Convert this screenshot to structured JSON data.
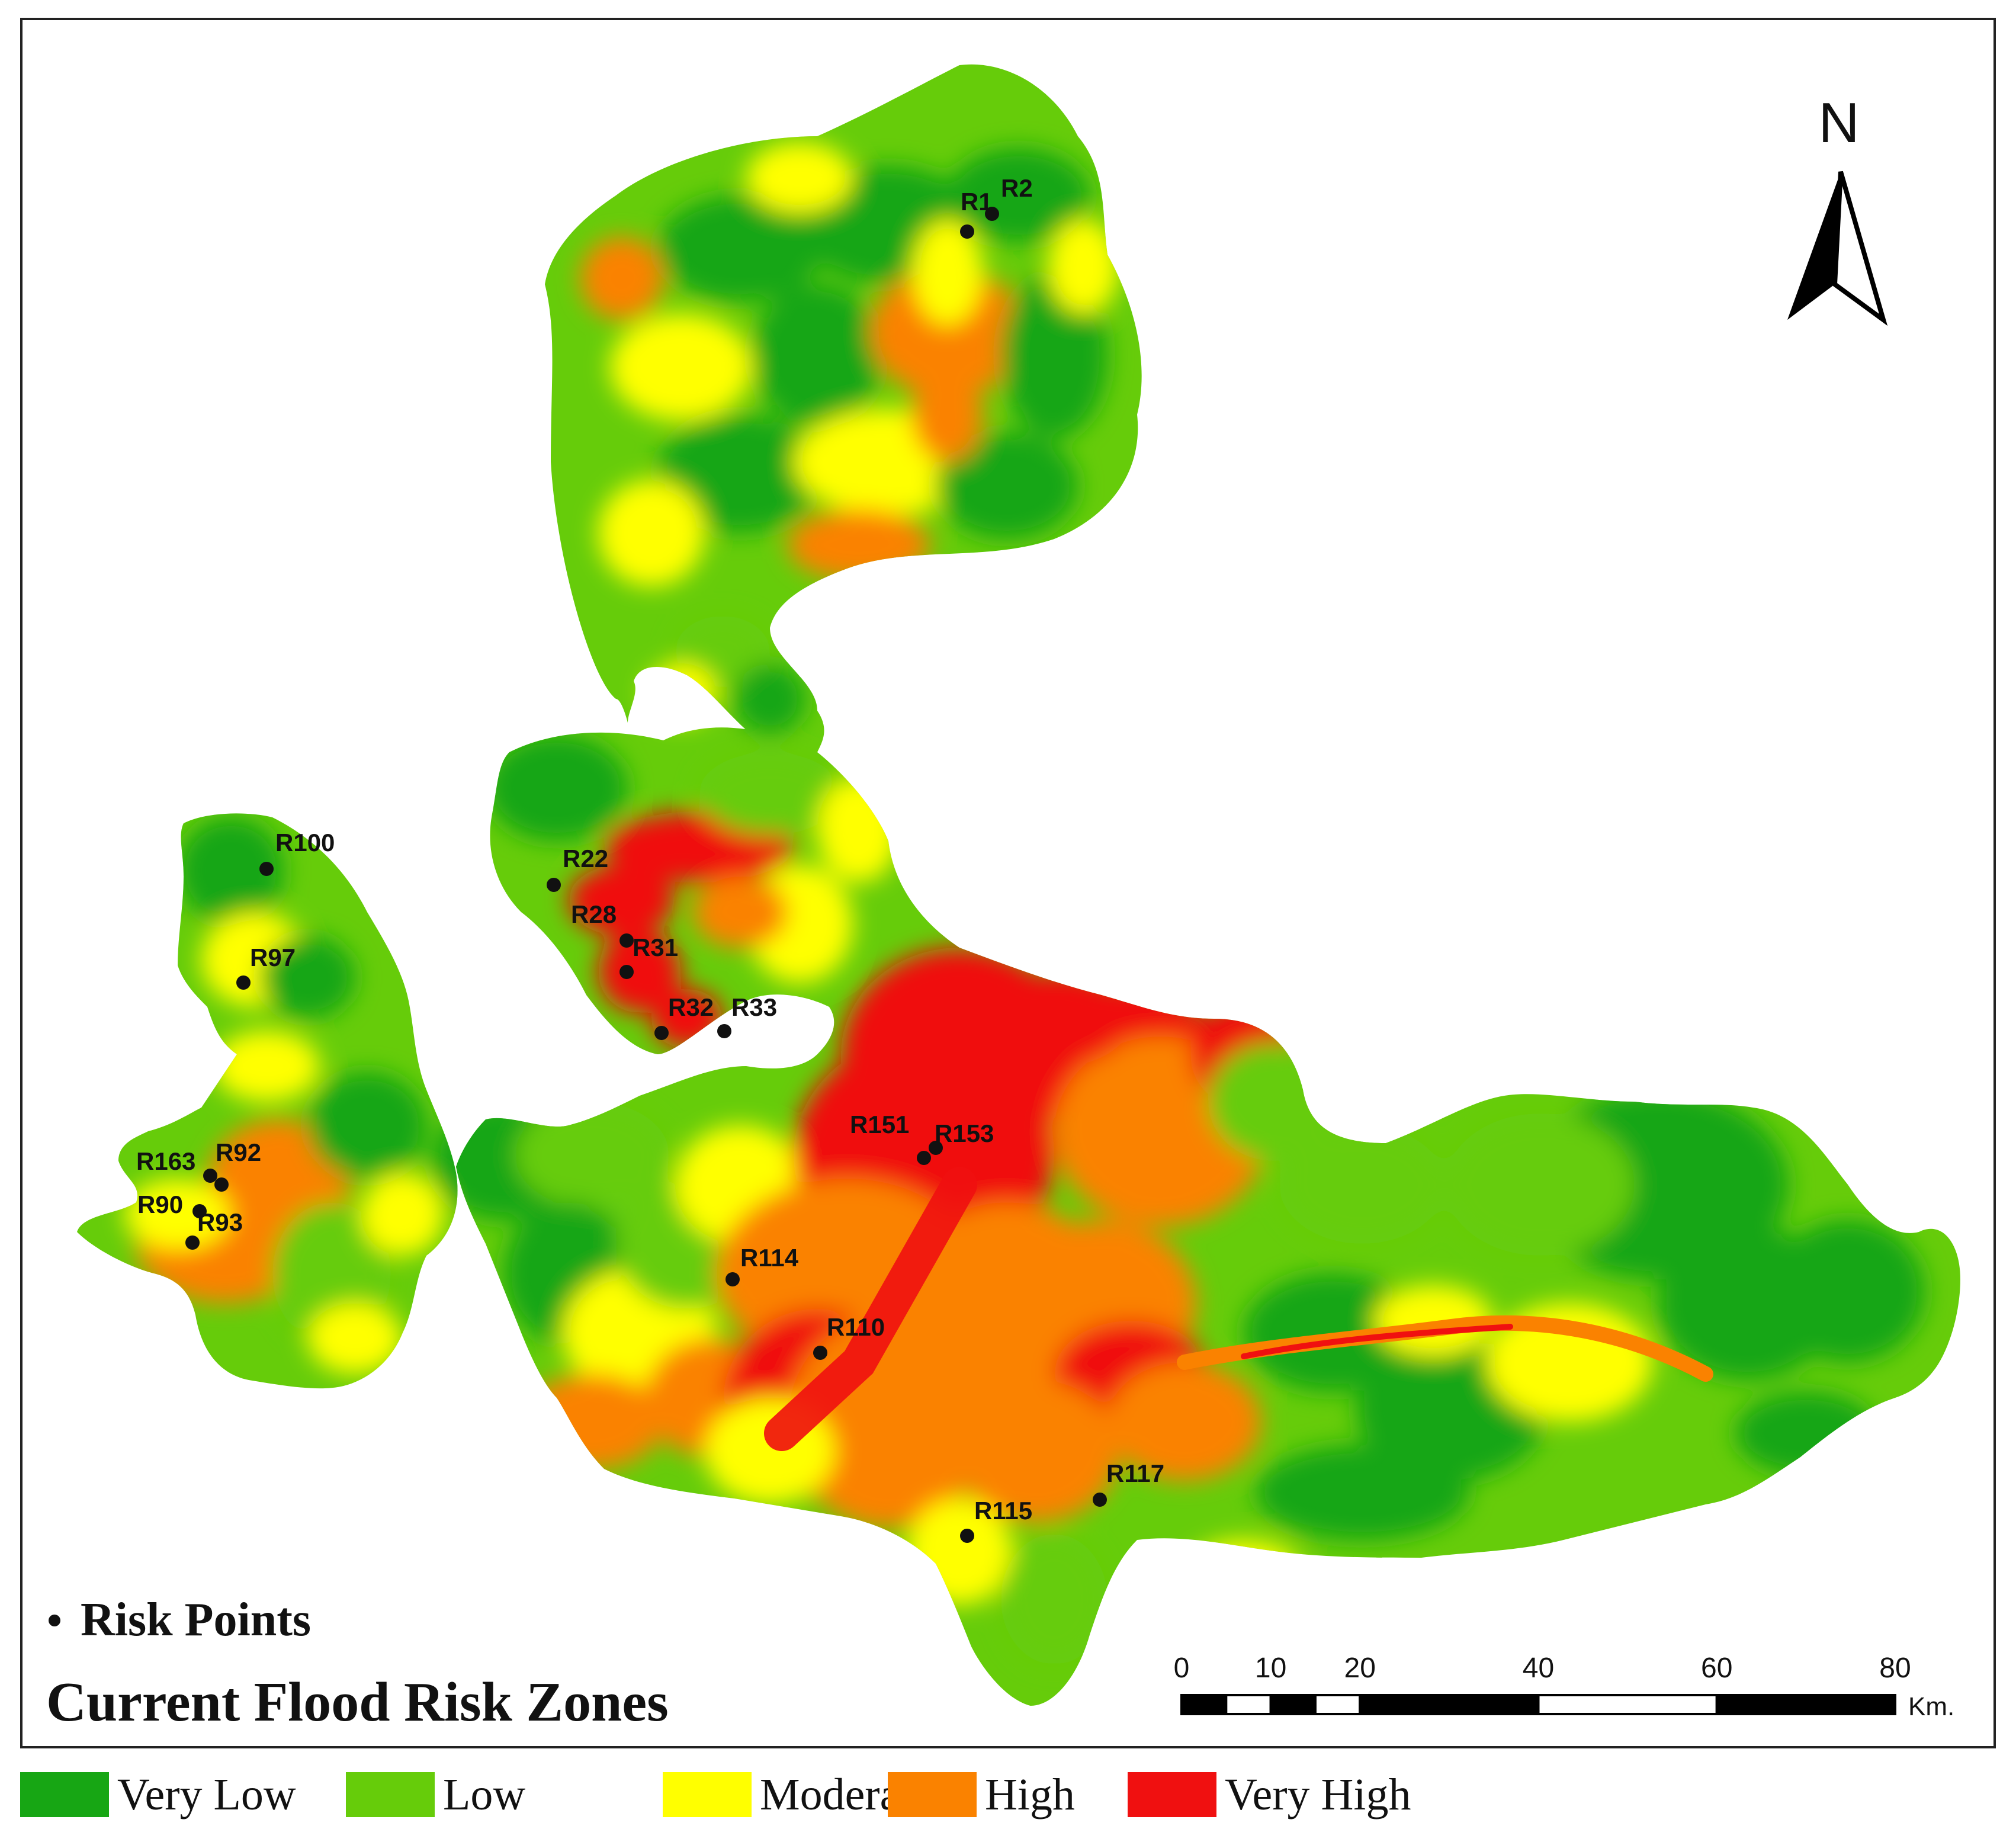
{
  "map": {
    "title": "Current Flood Risk Zones",
    "north_label": "N",
    "risk_legend_label": "Risk Points",
    "scale_bar": {
      "ticks": [
        "0",
        "10",
        "20",
        "40",
        "60",
        "80"
      ],
      "unit": "Km."
    },
    "risk_points": [
      {
        "id": "R1"
      },
      {
        "id": "R2"
      },
      {
        "id": "R100"
      },
      {
        "id": "R97"
      },
      {
        "id": "R22"
      },
      {
        "id": "R28"
      },
      {
        "id": "R31"
      },
      {
        "id": "R32"
      },
      {
        "id": "R33"
      },
      {
        "id": "R163"
      },
      {
        "id": "R92"
      },
      {
        "id": "R90"
      },
      {
        "id": "R93"
      },
      {
        "id": "R151"
      },
      {
        "id": "R153"
      },
      {
        "id": "R114"
      },
      {
        "id": "R110"
      },
      {
        "id": "R117"
      },
      {
        "id": "R115"
      }
    ],
    "legend": [
      {
        "label": "Very Low",
        "color": "#17a614"
      },
      {
        "label": "Low",
        "color": "#66cc0a"
      },
      {
        "label": "Moderate",
        "color": "#ffff00"
      },
      {
        "label": "High",
        "color": "#fa8200"
      },
      {
        "label": "Very High",
        "color": "#f01010"
      }
    ]
  }
}
